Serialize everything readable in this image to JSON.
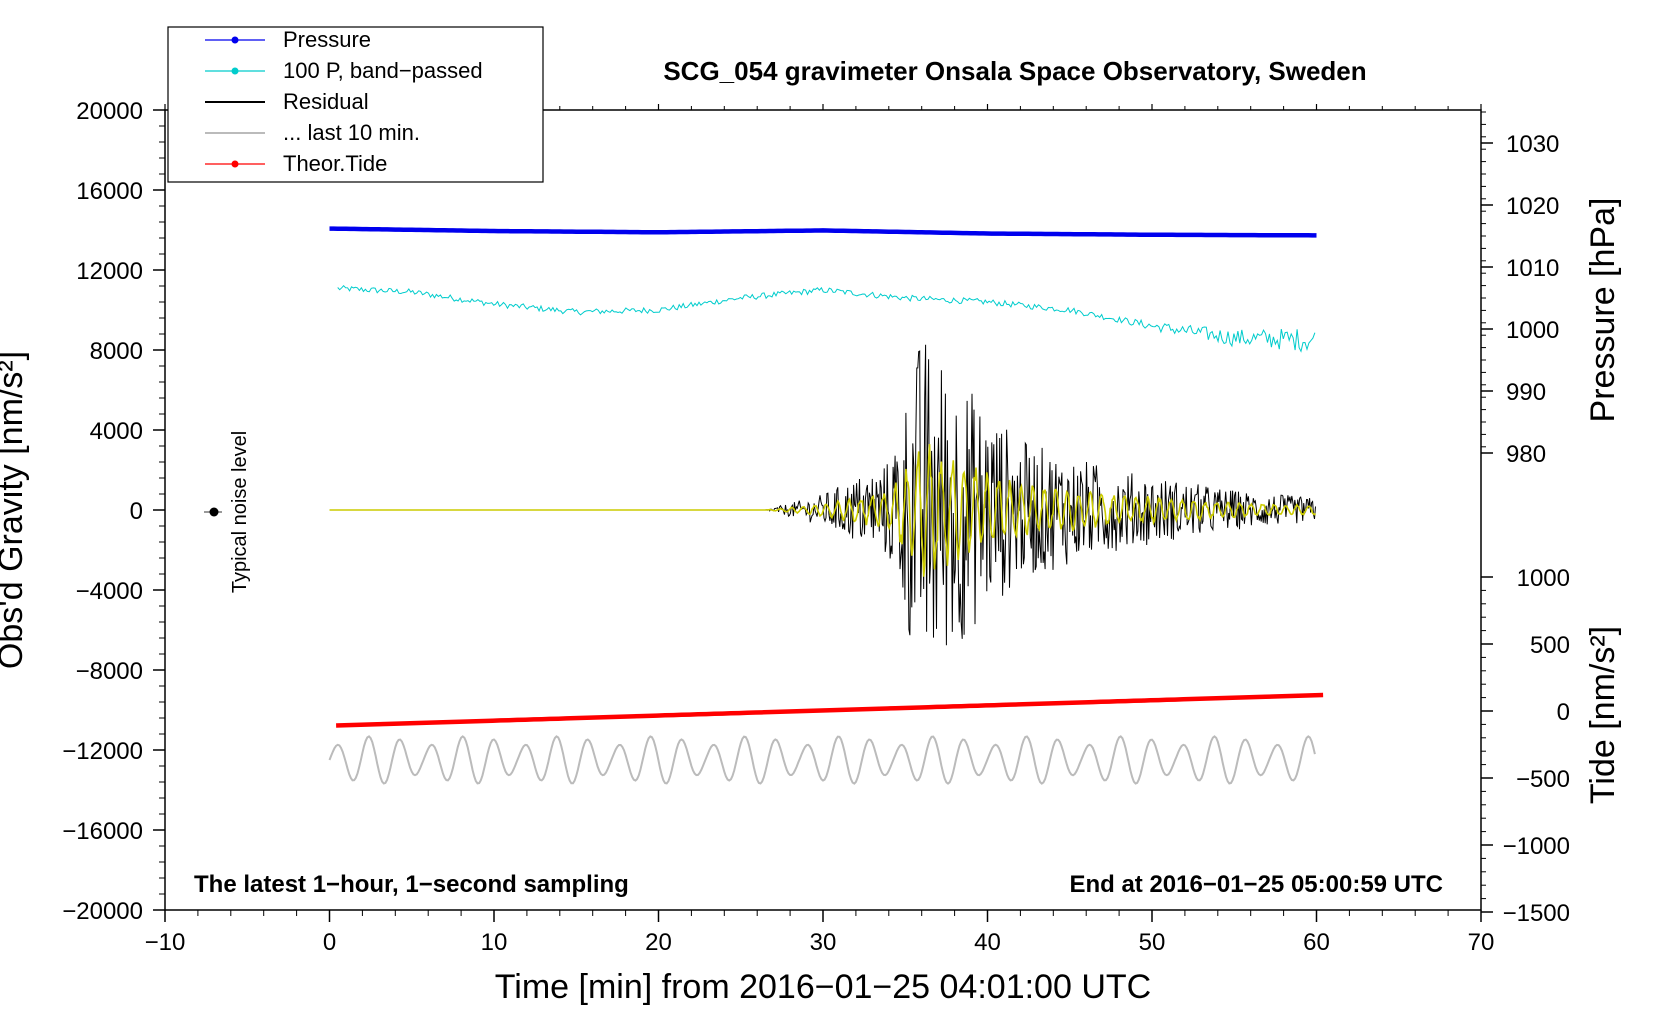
{
  "chart_data": {
    "type": "line",
    "title": "SCG_054 gravimeter Onsala Space Observatory, Sweden",
    "xlabel": "Time [min] from 2016−01−25 04:01:00 UTC",
    "ylabel_left": "Obs'd Gravity [nm/s²]",
    "ylabel_right_top": "Pressure [hPa]",
    "ylabel_right_bottom": "Tide [nm/s²]",
    "xlim": [
      -10,
      70
    ],
    "ylim": [
      -20000,
      20000
    ],
    "pressure_lim": [
      970,
      1035
    ],
    "tide_lim": [
      -1500,
      1000
    ],
    "x_ticks": [
      "−10",
      "0",
      "10",
      "20",
      "30",
      "40",
      "50",
      "60",
      "70"
    ],
    "x_tick_values": [
      -10,
      0,
      10,
      20,
      30,
      40,
      50,
      60,
      70
    ],
    "y_ticks": [
      "20000",
      "16000",
      "12000",
      "8000",
      "4000",
      "0",
      "−4000",
      "−8000",
      "−12000",
      "−16000",
      "−20000"
    ],
    "y_tick_values": [
      20000,
      16000,
      12000,
      8000,
      4000,
      0,
      -4000,
      -8000,
      -12000,
      -16000,
      -20000
    ],
    "pressure_ticks": [
      "1030",
      "1020",
      "1010",
      "1000",
      "990",
      "980"
    ],
    "pressure_tick_values": [
      1030,
      1020,
      1010,
      1000,
      990,
      980
    ],
    "tide_ticks": [
      "1000",
      "500",
      "0",
      "−500",
      "−1000",
      "−1500"
    ],
    "tide_tick_values": [
      1000,
      500,
      0,
      -500,
      -1000,
      -1500
    ],
    "legend": [
      {
        "label": "Pressure",
        "color": "#0000ee",
        "marker": true
      },
      {
        "label": "100 P, band−passed",
        "color": "#00cccc",
        "marker": true
      },
      {
        "label": "Residual",
        "color": "#000000",
        "marker": false
      },
      {
        "label": "... last 10 min.",
        "color": "#bbbbbb",
        "marker": false
      },
      {
        "label": "Theor.Tide",
        "color": "#ff0000",
        "marker": true
      }
    ],
    "series": [
      {
        "name": "Pressure",
        "unit": "hPa",
        "x": [
          0,
          10,
          20,
          30,
          40,
          50,
          60
        ],
        "values": [
          1016.2,
          1015.8,
          1015.6,
          1015.9,
          1015.4,
          1015.2,
          1015.1
        ]
      },
      {
        "name": "100 P, band−passed",
        "unit": "nm/s²",
        "x": [
          0,
          5,
          10,
          15,
          20,
          25,
          30,
          35,
          40,
          45,
          50,
          55,
          60
        ],
        "values": [
          11100,
          10900,
          10300,
          9900,
          10000,
          10600,
          11000,
          10600,
          10400,
          10000,
          9200,
          8600,
          8500
        ]
      },
      {
        "name": "Residual",
        "unit": "nm/s²",
        "x": [
          0,
          26.5,
          30,
          34,
          36,
          38,
          42,
          48,
          55,
          60
        ],
        "amplitude": [
          0,
          0,
          800,
          2500,
          9000,
          7000,
          3500,
          2000,
          1000,
          600
        ]
      },
      {
        "name": "... last 10 min.",
        "unit": "nm/s²",
        "x": [
          0,
          60
        ],
        "center": -12500,
        "amplitude": 1200
      },
      {
        "name": "Theor.Tide",
        "unit": "nm/s²",
        "x": [
          0,
          60.5
        ],
        "values": [
          -110,
          120
        ]
      }
    ],
    "noise_label": "Typical noise level",
    "noise_marker_x": -7,
    "annotation_left": "The latest 1−hour, 1−second sampling",
    "annotation_right": "End at 2016−01−25 05:00:59 UTC"
  }
}
